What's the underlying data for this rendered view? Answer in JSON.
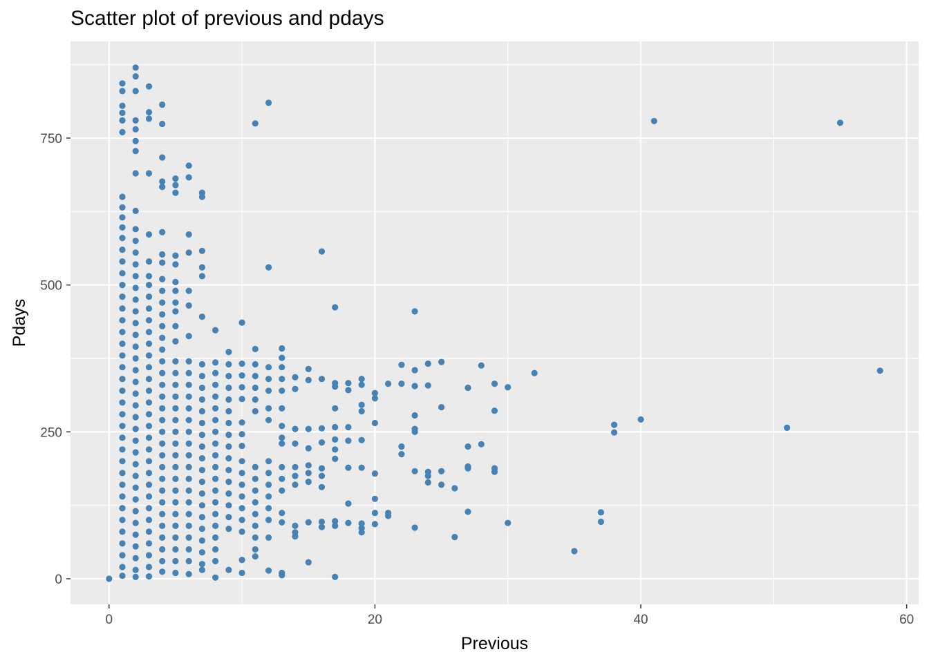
{
  "chart_data": {
    "type": "scatter",
    "title": "Scatter plot of previous and pdays",
    "xlabel": "Previous",
    "ylabel": "Pdays",
    "xlim": [
      -2.9,
      60.9
    ],
    "ylim": [
      -43.5,
      914.5
    ],
    "x_ticks": [
      0,
      20,
      40,
      60
    ],
    "y_ticks": [
      0,
      250,
      500,
      750
    ],
    "grid": true,
    "panel_background": "#ebebeb",
    "point_color": "#4682b4",
    "points": [
      [
        0,
        0
      ],
      [
        1,
        843
      ],
      [
        1,
        830
      ],
      [
        1,
        805
      ],
      [
        1,
        793
      ],
      [
        1,
        780
      ],
      [
        1,
        760
      ],
      [
        1,
        650
      ],
      [
        1,
        632
      ],
      [
        1,
        615
      ],
      [
        1,
        598
      ],
      [
        1,
        580
      ],
      [
        1,
        560
      ],
      [
        1,
        540
      ],
      [
        1,
        520
      ],
      [
        1,
        500
      ],
      [
        1,
        480
      ],
      [
        1,
        460
      ],
      [
        1,
        440
      ],
      [
        1,
        420
      ],
      [
        1,
        400
      ],
      [
        1,
        380
      ],
      [
        1,
        360
      ],
      [
        1,
        340
      ],
      [
        1,
        320
      ],
      [
        1,
        300
      ],
      [
        1,
        280
      ],
      [
        1,
        260
      ],
      [
        1,
        240
      ],
      [
        1,
        220
      ],
      [
        1,
        200
      ],
      [
        1,
        180
      ],
      [
        1,
        160
      ],
      [
        1,
        140
      ],
      [
        1,
        120
      ],
      [
        1,
        100
      ],
      [
        1,
        80
      ],
      [
        1,
        60
      ],
      [
        1,
        40
      ],
      [
        1,
        20
      ],
      [
        1,
        5
      ],
      [
        2,
        870
      ],
      [
        2,
        855
      ],
      [
        2,
        830
      ],
      [
        2,
        780
      ],
      [
        2,
        765
      ],
      [
        2,
        745
      ],
      [
        2,
        728
      ],
      [
        2,
        690
      ],
      [
        2,
        626
      ],
      [
        2,
        595
      ],
      [
        2,
        575
      ],
      [
        2,
        555
      ],
      [
        2,
        535
      ],
      [
        2,
        515
      ],
      [
        2,
        495
      ],
      [
        2,
        475
      ],
      [
        2,
        455
      ],
      [
        2,
        435
      ],
      [
        2,
        415
      ],
      [
        2,
        395
      ],
      [
        2,
        375
      ],
      [
        2,
        355
      ],
      [
        2,
        335
      ],
      [
        2,
        315
      ],
      [
        2,
        295
      ],
      [
        2,
        275
      ],
      [
        2,
        255
      ],
      [
        2,
        235
      ],
      [
        2,
        215
      ],
      [
        2,
        195
      ],
      [
        2,
        175
      ],
      [
        2,
        155
      ],
      [
        2,
        135
      ],
      [
        2,
        115
      ],
      [
        2,
        95
      ],
      [
        2,
        75
      ],
      [
        2,
        55
      ],
      [
        2,
        35
      ],
      [
        2,
        15
      ],
      [
        2,
        3
      ],
      [
        3,
        838
      ],
      [
        3,
        794
      ],
      [
        3,
        783
      ],
      [
        3,
        690
      ],
      [
        3,
        586
      ],
      [
        3,
        540
      ],
      [
        3,
        515
      ],
      [
        3,
        500
      ],
      [
        3,
        480
      ],
      [
        3,
        460
      ],
      [
        3,
        440
      ],
      [
        3,
        420
      ],
      [
        3,
        400
      ],
      [
        3,
        380
      ],
      [
        3,
        360
      ],
      [
        3,
        340
      ],
      [
        3,
        320
      ],
      [
        3,
        300
      ],
      [
        3,
        280
      ],
      [
        3,
        260
      ],
      [
        3,
        240
      ],
      [
        3,
        220
      ],
      [
        3,
        200
      ],
      [
        3,
        180
      ],
      [
        3,
        160
      ],
      [
        3,
        140
      ],
      [
        3,
        120
      ],
      [
        3,
        100
      ],
      [
        3,
        80
      ],
      [
        3,
        60
      ],
      [
        3,
        40
      ],
      [
        3,
        20
      ],
      [
        3,
        4
      ],
      [
        4,
        807
      ],
      [
        4,
        774
      ],
      [
        4,
        717
      ],
      [
        4,
        676
      ],
      [
        4,
        667
      ],
      [
        4,
        590
      ],
      [
        4,
        552
      ],
      [
        4,
        538
      ],
      [
        4,
        510
      ],
      [
        4,
        490
      ],
      [
        4,
        470
      ],
      [
        4,
        450
      ],
      [
        4,
        430
      ],
      [
        4,
        410
      ],
      [
        4,
        390
      ],
      [
        4,
        370
      ],
      [
        4,
        350
      ],
      [
        4,
        330
      ],
      [
        4,
        310
      ],
      [
        4,
        290
      ],
      [
        4,
        270
      ],
      [
        4,
        250
      ],
      [
        4,
        230
      ],
      [
        4,
        210
      ],
      [
        4,
        190
      ],
      [
        4,
        170
      ],
      [
        4,
        150
      ],
      [
        4,
        130
      ],
      [
        4,
        110
      ],
      [
        4,
        90
      ],
      [
        4,
        70
      ],
      [
        4,
        50
      ],
      [
        4,
        30
      ],
      [
        4,
        12
      ],
      [
        5,
        681
      ],
      [
        5,
        670
      ],
      [
        5,
        657
      ],
      [
        5,
        550
      ],
      [
        5,
        535
      ],
      [
        5,
        505
      ],
      [
        5,
        490
      ],
      [
        5,
        470
      ],
      [
        5,
        455
      ],
      [
        5,
        430
      ],
      [
        5,
        404
      ],
      [
        5,
        370
      ],
      [
        5,
        350
      ],
      [
        5,
        330
      ],
      [
        5,
        310
      ],
      [
        5,
        290
      ],
      [
        5,
        270
      ],
      [
        5,
        250
      ],
      [
        5,
        230
      ],
      [
        5,
        210
      ],
      [
        5,
        190
      ],
      [
        5,
        170
      ],
      [
        5,
        150
      ],
      [
        5,
        130
      ],
      [
        5,
        110
      ],
      [
        5,
        90
      ],
      [
        5,
        70
      ],
      [
        5,
        50
      ],
      [
        5,
        30
      ],
      [
        5,
        10
      ],
      [
        6,
        703
      ],
      [
        6,
        683
      ],
      [
        6,
        586
      ],
      [
        6,
        555
      ],
      [
        6,
        490
      ],
      [
        6,
        465
      ],
      [
        6,
        413
      ],
      [
        6,
        370
      ],
      [
        6,
        350
      ],
      [
        6,
        330
      ],
      [
        6,
        310
      ],
      [
        6,
        290
      ],
      [
        6,
        270
      ],
      [
        6,
        250
      ],
      [
        6,
        230
      ],
      [
        6,
        210
      ],
      [
        6,
        190
      ],
      [
        6,
        170
      ],
      [
        6,
        150
      ],
      [
        6,
        130
      ],
      [
        6,
        110
      ],
      [
        6,
        90
      ],
      [
        6,
        70
      ],
      [
        6,
        50
      ],
      [
        6,
        30
      ],
      [
        6,
        8
      ],
      [
        7,
        657
      ],
      [
        7,
        650
      ],
      [
        7,
        558
      ],
      [
        7,
        530
      ],
      [
        7,
        515
      ],
      [
        7,
        446
      ],
      [
        7,
        365
      ],
      [
        7,
        345
      ],
      [
        7,
        325
      ],
      [
        7,
        305
      ],
      [
        7,
        285
      ],
      [
        7,
        265
      ],
      [
        7,
        245
      ],
      [
        7,
        225
      ],
      [
        7,
        205
      ],
      [
        7,
        185
      ],
      [
        7,
        165
      ],
      [
        7,
        145
      ],
      [
        7,
        125
      ],
      [
        7,
        105
      ],
      [
        7,
        85
      ],
      [
        7,
        65
      ],
      [
        7,
        45
      ],
      [
        7,
        25
      ],
      [
        7,
        15
      ],
      [
        8,
        423
      ],
      [
        8,
        368
      ],
      [
        8,
        350
      ],
      [
        8,
        330
      ],
      [
        8,
        310
      ],
      [
        8,
        290
      ],
      [
        8,
        270
      ],
      [
        8,
        250
      ],
      [
        8,
        230
      ],
      [
        8,
        210
      ],
      [
        8,
        190
      ],
      [
        8,
        170
      ],
      [
        8,
        150
      ],
      [
        8,
        130
      ],
      [
        8,
        110
      ],
      [
        8,
        90
      ],
      [
        8,
        70
      ],
      [
        8,
        50
      ],
      [
        8,
        30
      ],
      [
        8,
        2
      ],
      [
        9,
        386
      ],
      [
        9,
        365
      ],
      [
        9,
        345
      ],
      [
        9,
        325
      ],
      [
        9,
        305
      ],
      [
        9,
        285
      ],
      [
        9,
        265
      ],
      [
        9,
        245
      ],
      [
        9,
        225
      ],
      [
        9,
        205
      ],
      [
        9,
        185
      ],
      [
        9,
        165
      ],
      [
        9,
        145
      ],
      [
        9,
        125
      ],
      [
        9,
        105
      ],
      [
        9,
        85
      ],
      [
        9,
        15
      ],
      [
        10,
        436
      ],
      [
        10,
        366
      ],
      [
        10,
        346
      ],
      [
        10,
        326
      ],
      [
        10,
        306
      ],
      [
        10,
        266
      ],
      [
        10,
        246
      ],
      [
        10,
        226
      ],
      [
        10,
        200
      ],
      [
        10,
        180
      ],
      [
        10,
        160
      ],
      [
        10,
        140
      ],
      [
        10,
        120
      ],
      [
        10,
        100
      ],
      [
        10,
        80
      ],
      [
        10,
        32
      ],
      [
        10,
        10
      ],
      [
        11,
        775
      ],
      [
        11,
        391
      ],
      [
        11,
        365
      ],
      [
        11,
        345
      ],
      [
        11,
        325
      ],
      [
        11,
        305
      ],
      [
        11,
        285
      ],
      [
        11,
        190
      ],
      [
        11,
        170
      ],
      [
        11,
        150
      ],
      [
        11,
        130
      ],
      [
        11,
        110
      ],
      [
        11,
        90
      ],
      [
        11,
        70
      ],
      [
        11,
        50
      ],
      [
        11,
        38
      ],
      [
        12,
        810
      ],
      [
        12,
        530
      ],
      [
        12,
        360
      ],
      [
        12,
        340
      ],
      [
        12,
        320
      ],
      [
        12,
        290
      ],
      [
        12,
        270
      ],
      [
        12,
        200
      ],
      [
        12,
        180
      ],
      [
        12,
        160
      ],
      [
        12,
        140
      ],
      [
        12,
        120
      ],
      [
        12,
        100
      ],
      [
        12,
        70
      ],
      [
        12,
        14
      ],
      [
        13,
        392
      ],
      [
        13,
        376
      ],
      [
        13,
        360
      ],
      [
        13,
        340
      ],
      [
        13,
        320
      ],
      [
        13,
        290
      ],
      [
        13,
        260
      ],
      [
        13,
        240
      ],
      [
        13,
        230
      ],
      [
        13,
        190
      ],
      [
        13,
        170
      ],
      [
        13,
        150
      ],
      [
        13,
        112
      ],
      [
        13,
        96
      ],
      [
        13,
        10
      ],
      [
        13,
        6
      ],
      [
        14,
        343
      ],
      [
        14,
        323
      ],
      [
        14,
        255
      ],
      [
        14,
        230
      ],
      [
        14,
        190
      ],
      [
        14,
        175
      ],
      [
        14,
        160
      ],
      [
        14,
        90
      ],
      [
        14,
        79
      ],
      [
        14,
        72
      ],
      [
        15,
        357
      ],
      [
        15,
        338
      ],
      [
        15,
        255
      ],
      [
        15,
        222
      ],
      [
        15,
        193
      ],
      [
        15,
        180
      ],
      [
        15,
        165
      ],
      [
        15,
        96
      ],
      [
        15,
        28
      ],
      [
        16,
        557
      ],
      [
        16,
        340
      ],
      [
        16,
        256
      ],
      [
        16,
        232
      ],
      [
        16,
        188
      ],
      [
        16,
        175
      ],
      [
        16,
        156
      ],
      [
        16,
        97
      ],
      [
        16,
        88
      ],
      [
        17,
        462
      ],
      [
        17,
        333
      ],
      [
        17,
        327
      ],
      [
        17,
        290
      ],
      [
        17,
        258
      ],
      [
        17,
        237
      ],
      [
        17,
        220
      ],
      [
        17,
        204
      ],
      [
        17,
        98
      ],
      [
        17,
        90
      ],
      [
        17,
        3
      ],
      [
        18,
        333
      ],
      [
        18,
        321
      ],
      [
        18,
        258
      ],
      [
        18,
        235
      ],
      [
        18,
        189
      ],
      [
        18,
        128
      ],
      [
        18,
        95
      ],
      [
        19,
        340
      ],
      [
        19,
        330
      ],
      [
        19,
        296
      ],
      [
        19,
        285
      ],
      [
        19,
        236
      ],
      [
        19,
        189
      ],
      [
        19,
        94
      ],
      [
        19,
        86
      ],
      [
        19,
        79
      ],
      [
        20,
        316
      ],
      [
        20,
        307
      ],
      [
        20,
        265
      ],
      [
        20,
        179
      ],
      [
        20,
        136
      ],
      [
        20,
        112
      ],
      [
        20,
        93
      ],
      [
        21,
        332
      ],
      [
        21,
        112
      ],
      [
        21,
        107
      ],
      [
        22,
        364
      ],
      [
        22,
        332
      ],
      [
        22,
        225
      ],
      [
        22,
        212
      ],
      [
        23,
        455
      ],
      [
        23,
        355
      ],
      [
        23,
        328
      ],
      [
        23,
        278
      ],
      [
        23,
        255
      ],
      [
        23,
        250
      ],
      [
        23,
        183
      ],
      [
        23,
        87
      ],
      [
        24,
        366
      ],
      [
        24,
        329
      ],
      [
        24,
        182
      ],
      [
        24,
        175
      ],
      [
        24,
        164
      ],
      [
        25,
        369
      ],
      [
        25,
        292
      ],
      [
        25,
        183
      ],
      [
        25,
        160
      ],
      [
        26,
        154
      ],
      [
        26,
        71
      ],
      [
        27,
        325
      ],
      [
        27,
        225
      ],
      [
        27,
        191
      ],
      [
        27,
        188
      ],
      [
        27,
        114
      ],
      [
        28,
        363
      ],
      [
        28,
        229
      ],
      [
        29,
        332
      ],
      [
        29,
        286
      ],
      [
        29,
        188
      ],
      [
        29,
        182
      ],
      [
        30,
        326
      ],
      [
        30,
        95
      ],
      [
        32,
        350
      ],
      [
        35,
        47
      ],
      [
        37,
        113
      ],
      [
        37,
        97
      ],
      [
        38,
        262
      ],
      [
        38,
        249
      ],
      [
        40,
        271
      ],
      [
        41,
        779
      ],
      [
        51,
        257
      ],
      [
        55,
        776
      ],
      [
        58,
        354
      ]
    ]
  }
}
